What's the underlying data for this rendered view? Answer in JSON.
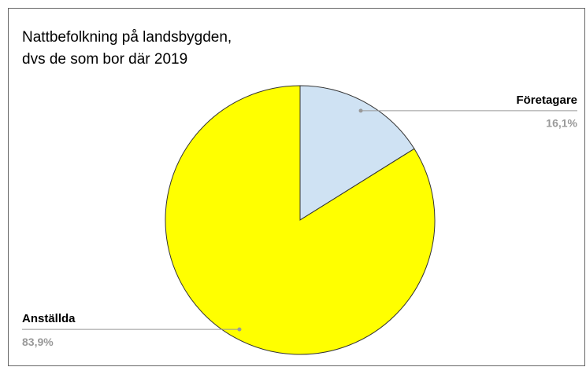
{
  "chart_data": {
    "type": "pie",
    "title": [
      "Nattbefolkning på landsbygden,",
      "dvs de som bor där 2019"
    ],
    "categories": [
      "Företagare",
      "Anställda"
    ],
    "values": [
      16.1,
      83.9
    ],
    "value_labels": [
      "16,1%",
      "83,9%"
    ],
    "colors": [
      "#cfe2f3",
      "#ffff00"
    ]
  }
}
